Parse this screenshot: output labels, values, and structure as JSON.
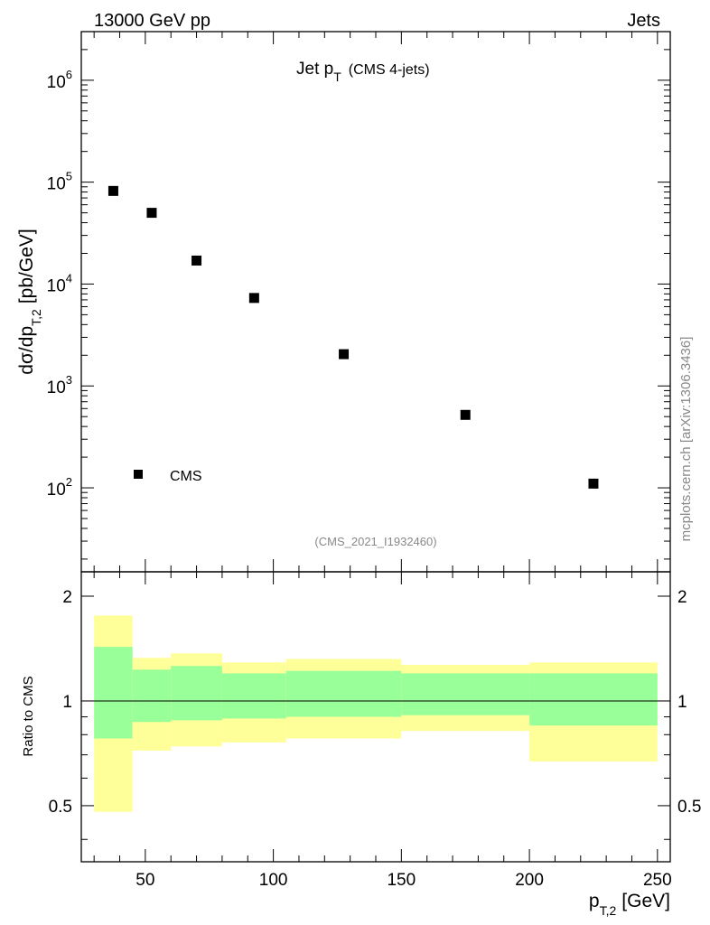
{
  "header": {
    "left": "13000 GeV pp",
    "right": "Jets"
  },
  "chart_data": [
    {
      "type": "scatter",
      "title": "Jet p",
      "title_sub": "T",
      "title_extra": "(CMS 4-jets)",
      "ylabel": "dσ/dp",
      "ylabel_sub": "T,2",
      "ylabel_unit": "[pb/GeV]",
      "y_scale": "log",
      "ylim": [
        15,
        3000000
      ],
      "xlim": [
        25,
        255
      ],
      "y_ticks": [
        {
          "value": 100,
          "base": "10",
          "exp": "2"
        },
        {
          "value": 1000,
          "base": "10",
          "exp": "3"
        },
        {
          "value": 10000,
          "base": "10",
          "exp": "4"
        },
        {
          "value": 100000,
          "base": "10",
          "exp": "5"
        },
        {
          "value": 1000000,
          "base": "10",
          "exp": "6"
        }
      ],
      "legend": {
        "label": "CMS",
        "position": "bottom-left"
      },
      "analysis_tag": "(CMS_2021_I1932460)",
      "series": [
        {
          "name": "CMS",
          "x": [
            37.5,
            52.5,
            70,
            92.5,
            127.5,
            175,
            225
          ],
          "y": [
            82000,
            50000,
            17000,
            7300,
            2050,
            520,
            110
          ]
        }
      ]
    },
    {
      "type": "area",
      "ylabel": "Ratio to CMS",
      "xlabel": "p",
      "xlabel_sub": "T,2",
      "xlabel_unit": "[GeV]",
      "y_scale": "log",
      "ylim": [
        0.345,
        2.35
      ],
      "xlim": [
        25,
        255
      ],
      "x_ticks": [
        "50",
        "100",
        "150",
        "200",
        "250"
      ],
      "x_tick_values": [
        50,
        100,
        150,
        200,
        250
      ],
      "y_ticks": [
        "0.5",
        "1",
        "2"
      ],
      "y_tick_values": [
        0.5,
        1,
        2
      ],
      "reference_line": 1,
      "bins": [
        {
          "lo": 30,
          "hi": 45,
          "inner": [
            0.78,
            1.43
          ],
          "outer": [
            0.48,
            1.76
          ]
        },
        {
          "lo": 45,
          "hi": 60,
          "inner": [
            0.87,
            1.23
          ],
          "outer": [
            0.72,
            1.33
          ]
        },
        {
          "lo": 60,
          "hi": 80,
          "inner": [
            0.88,
            1.26
          ],
          "outer": [
            0.74,
            1.37
          ]
        },
        {
          "lo": 80,
          "hi": 105,
          "inner": [
            0.89,
            1.2
          ],
          "outer": [
            0.76,
            1.29
          ]
        },
        {
          "lo": 105,
          "hi": 150,
          "inner": [
            0.9,
            1.22
          ],
          "outer": [
            0.78,
            1.32
          ]
        },
        {
          "lo": 150,
          "hi": 200,
          "inner": [
            0.91,
            1.2
          ],
          "outer": [
            0.82,
            1.27
          ]
        },
        {
          "lo": 200,
          "hi": 250,
          "inner": [
            0.85,
            1.2
          ],
          "outer": [
            0.67,
            1.29
          ]
        }
      ],
      "colors": {
        "inner": "#99ff99",
        "outer": "#ffff99"
      }
    }
  ],
  "side_label": "mcplots.cern.ch [arXiv:1306.3436]"
}
